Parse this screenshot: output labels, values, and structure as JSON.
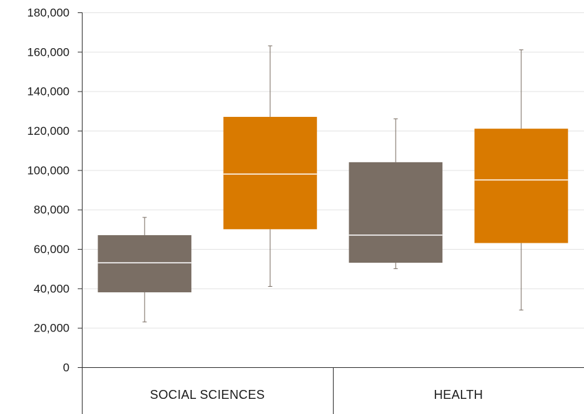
{
  "chart_data": {
    "type": "box",
    "categories": [
      "SOCIAL SCIENCES",
      "HEALTH"
    ],
    "ylim": [
      0,
      180000
    ],
    "yticks": [
      0,
      20000,
      40000,
      60000,
      80000,
      100000,
      120000,
      140000,
      160000,
      180000
    ],
    "ytick_labels": [
      "0",
      "20,000",
      "40,000",
      "60,000",
      "80,000",
      "100,000",
      "120,000",
      "140,000",
      "160,000",
      "180,000"
    ],
    "grid": true,
    "title": "",
    "xlabel": "",
    "ylabel": "",
    "boxes": [
      {
        "category": "SOCIAL SCIENCES",
        "series": 0,
        "min": 23000,
        "q1": 38000,
        "median": 53000,
        "q3": 67000,
        "max": 76000
      },
      {
        "category": "SOCIAL SCIENCES",
        "series": 1,
        "min": 41000,
        "q1": 70000,
        "median": 98000,
        "q3": 127000,
        "max": 163000
      },
      {
        "category": "HEALTH",
        "series": 0,
        "min": 50000,
        "q1": 53000,
        "median": 67000,
        "q3": 104000,
        "max": 126000
      },
      {
        "category": "HEALTH",
        "series": 1,
        "min": 29000,
        "q1": 63000,
        "median": 95000,
        "q3": 121000,
        "max": 161000
      }
    ],
    "series_colors": [
      "#7a6e64",
      "#d97a00"
    ],
    "gridline_color": "#e3e3e3",
    "axis_color": "#333333",
    "whisker_color": "#7a6e64",
    "median_color": "#ffffff"
  }
}
